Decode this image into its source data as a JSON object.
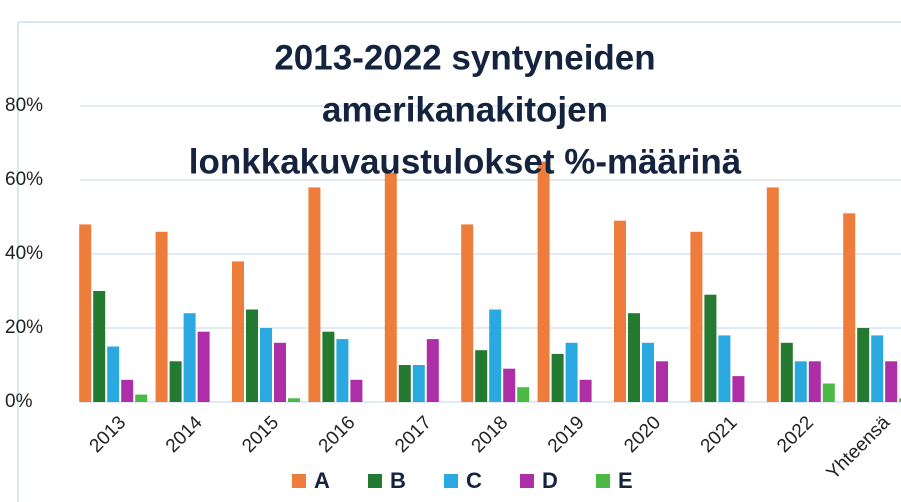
{
  "chart_data": {
    "type": "bar",
    "title": [
      "2013-2022 syntyneiden",
      "amerikanakitojen",
      "lonkkakuvaustulokset %-määrinä"
    ],
    "categories": [
      "2013",
      "2014",
      "2015",
      "2016",
      "2017",
      "2018",
      "2019",
      "2020",
      "2021",
      "2022",
      "Yhteensä"
    ],
    "series": [
      {
        "name": "A",
        "color": "#ee7d3b",
        "values": [
          48,
          46,
          38,
          58,
          62,
          48,
          65,
          49,
          46,
          58,
          51
        ]
      },
      {
        "name": "B",
        "color": "#237a30",
        "values": [
          30,
          11,
          25,
          19,
          10,
          14,
          13,
          24,
          29,
          16,
          20
        ]
      },
      {
        "name": "C",
        "color": "#2aa9e0",
        "values": [
          15,
          24,
          20,
          17,
          10,
          25,
          16,
          16,
          18,
          11,
          18
        ]
      },
      {
        "name": "D",
        "color": "#ad2ea6",
        "values": [
          6,
          19,
          16,
          6,
          17,
          9,
          6,
          11,
          7,
          11,
          11
        ]
      },
      {
        "name": "E",
        "color": "#4cb944",
        "values": [
          2,
          0,
          1,
          0,
          0,
          4,
          0,
          0,
          0,
          5,
          1
        ]
      }
    ],
    "ylim": [
      0,
      100
    ],
    "yticks": [
      {
        "value": 0,
        "label": "0%"
      },
      {
        "value": 20,
        "label": "20%"
      },
      {
        "value": 40,
        "label": "40%"
      },
      {
        "value": 60,
        "label": "60%"
      },
      {
        "value": 80,
        "label": "80%"
      }
    ],
    "grid": true,
    "legend": "bottom"
  }
}
